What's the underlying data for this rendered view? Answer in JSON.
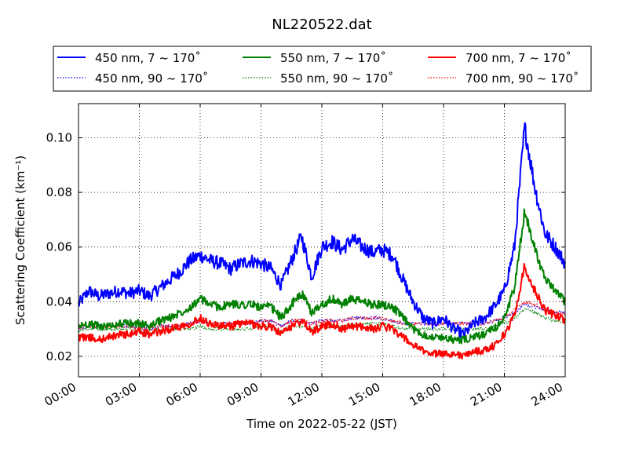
{
  "chart_data": {
    "type": "line",
    "title": "NL220522.dat",
    "xlabel": "Time on 2022-05-22 (JST)",
    "ylabel": "Scattering Coefficient (km⁻¹)",
    "x_unit": "hours",
    "xlim": [
      0,
      24
    ],
    "ylim": [
      0.0125,
      0.1125
    ],
    "x_ticks": [
      0,
      3,
      6,
      9,
      12,
      15,
      18,
      21,
      24
    ],
    "x_tick_labels": [
      "00:00",
      "03:00",
      "06:00",
      "09:00",
      "12:00",
      "15:00",
      "18:00",
      "21:00",
      "24:00"
    ],
    "y_ticks": [
      0.02,
      0.04,
      0.06,
      0.08,
      0.1
    ],
    "y_tick_labels": [
      "0.02",
      "0.04",
      "0.06",
      "0.08",
      "0.10"
    ],
    "grid": true,
    "legend_position": "top, above plot (3 columns)",
    "x": [
      0,
      0.5,
      1,
      1.5,
      2,
      2.5,
      3,
      3.5,
      4,
      4.5,
      5,
      5.5,
      6,
      6.5,
      7,
      7.5,
      8,
      8.5,
      9,
      9.5,
      10,
      10.5,
      11,
      11.5,
      12,
      12.5,
      13,
      13.5,
      14,
      14.5,
      15,
      15.5,
      16,
      16.5,
      17,
      17.5,
      18,
      18.5,
      19,
      19.5,
      20,
      20.5,
      21,
      21.5,
      22,
      22.5,
      23,
      23.5,
      24
    ],
    "series": [
      {
        "name": "450 nm, 7 ~ 170˚",
        "color": "#0000ff",
        "style": "solid",
        "values": [
          0.039,
          0.044,
          0.042,
          0.043,
          0.044,
          0.043,
          0.044,
          0.042,
          0.045,
          0.048,
          0.051,
          0.055,
          0.057,
          0.055,
          0.054,
          0.052,
          0.054,
          0.055,
          0.054,
          0.052,
          0.046,
          0.055,
          0.064,
          0.049,
          0.06,
          0.062,
          0.059,
          0.063,
          0.06,
          0.058,
          0.059,
          0.057,
          0.048,
          0.04,
          0.034,
          0.032,
          0.034,
          0.03,
          0.028,
          0.032,
          0.034,
          0.038,
          0.044,
          0.06,
          0.104,
          0.082,
          0.065,
          0.06,
          0.054
        ]
      },
      {
        "name": "450 nm, 90 ~ 170˚",
        "color": "#0000ff",
        "style": "dotted",
        "values": [
          0.03,
          0.031,
          0.031,
          0.031,
          0.031,
          0.031,
          0.03,
          0.03,
          0.031,
          0.031,
          0.031,
          0.032,
          0.033,
          0.032,
          0.032,
          0.032,
          0.032,
          0.032,
          0.033,
          0.033,
          0.031,
          0.033,
          0.033,
          0.032,
          0.033,
          0.033,
          0.033,
          0.034,
          0.034,
          0.034,
          0.034,
          0.033,
          0.032,
          0.032,
          0.032,
          0.032,
          0.032,
          0.032,
          0.032,
          0.032,
          0.032,
          0.033,
          0.034,
          0.036,
          0.039,
          0.038,
          0.037,
          0.036,
          0.036
        ]
      },
      {
        "name": "550 nm, 7 ~ 170˚",
        "color": "#008000",
        "style": "solid",
        "values": [
          0.031,
          0.032,
          0.031,
          0.031,
          0.032,
          0.032,
          0.032,
          0.031,
          0.033,
          0.034,
          0.036,
          0.038,
          0.041,
          0.039,
          0.038,
          0.039,
          0.039,
          0.039,
          0.038,
          0.038,
          0.034,
          0.039,
          0.043,
          0.036,
          0.039,
          0.041,
          0.039,
          0.041,
          0.04,
          0.039,
          0.039,
          0.038,
          0.034,
          0.03,
          0.028,
          0.027,
          0.027,
          0.026,
          0.026,
          0.027,
          0.028,
          0.03,
          0.034,
          0.045,
          0.073,
          0.06,
          0.048,
          0.044,
          0.04
        ]
      },
      {
        "name": "550 nm, 90 ~ 170˚",
        "color": "#008000",
        "style": "dotted",
        "values": [
          0.029,
          0.03,
          0.03,
          0.03,
          0.03,
          0.03,
          0.029,
          0.029,
          0.03,
          0.03,
          0.03,
          0.03,
          0.031,
          0.03,
          0.03,
          0.03,
          0.03,
          0.03,
          0.031,
          0.031,
          0.029,
          0.031,
          0.031,
          0.03,
          0.031,
          0.031,
          0.031,
          0.032,
          0.032,
          0.032,
          0.032,
          0.031,
          0.03,
          0.03,
          0.03,
          0.03,
          0.03,
          0.03,
          0.03,
          0.03,
          0.03,
          0.031,
          0.032,
          0.034,
          0.037,
          0.036,
          0.034,
          0.033,
          0.032
        ]
      },
      {
        "name": "700 nm, 7 ~ 170˚",
        "color": "#ff0000",
        "style": "solid",
        "values": [
          0.027,
          0.027,
          0.026,
          0.027,
          0.028,
          0.028,
          0.029,
          0.028,
          0.029,
          0.03,
          0.031,
          0.032,
          0.034,
          0.032,
          0.031,
          0.031,
          0.032,
          0.032,
          0.031,
          0.031,
          0.028,
          0.031,
          0.033,
          0.029,
          0.031,
          0.032,
          0.03,
          0.031,
          0.031,
          0.03,
          0.031,
          0.03,
          0.027,
          0.024,
          0.022,
          0.021,
          0.021,
          0.021,
          0.02,
          0.022,
          0.022,
          0.024,
          0.028,
          0.035,
          0.053,
          0.044,
          0.037,
          0.035,
          0.033
        ]
      },
      {
        "name": "700 nm, 90 ~ 170˚",
        "color": "#ff0000",
        "style": "dotted",
        "values": [
          0.03,
          0.031,
          0.031,
          0.031,
          0.031,
          0.031,
          0.03,
          0.03,
          0.031,
          0.031,
          0.031,
          0.032,
          0.033,
          0.032,
          0.032,
          0.032,
          0.032,
          0.032,
          0.033,
          0.033,
          0.031,
          0.033,
          0.033,
          0.032,
          0.033,
          0.033,
          0.033,
          0.034,
          0.034,
          0.034,
          0.034,
          0.033,
          0.032,
          0.032,
          0.032,
          0.032,
          0.032,
          0.032,
          0.032,
          0.032,
          0.032,
          0.033,
          0.034,
          0.037,
          0.04,
          0.039,
          0.037,
          0.036,
          0.035
        ]
      }
    ]
  }
}
